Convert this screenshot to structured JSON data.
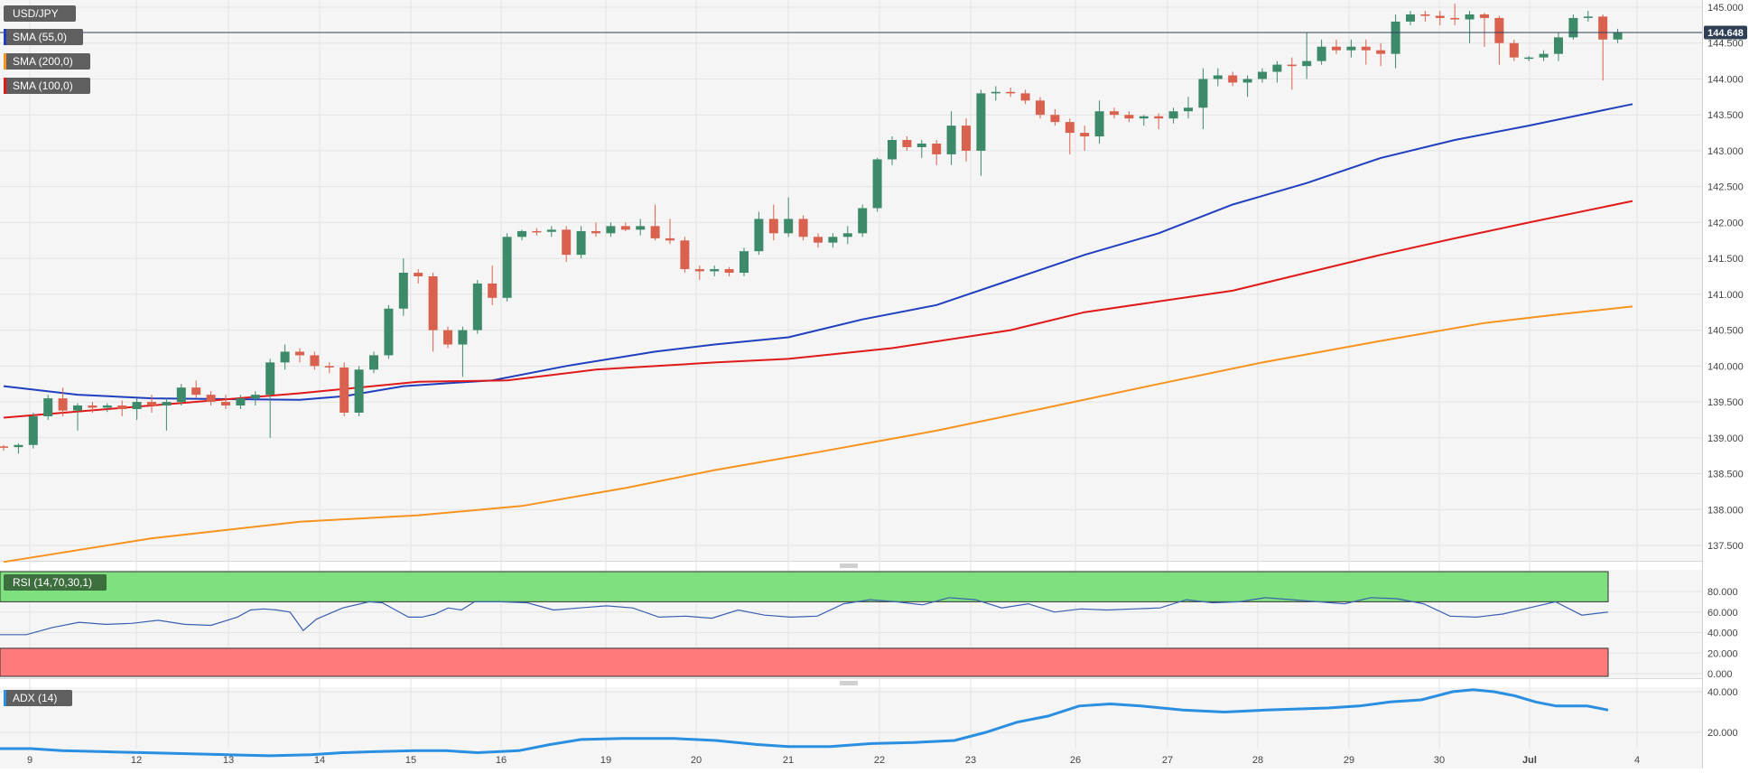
{
  "instrument": "USD/JPY",
  "last_price_label": "144.648",
  "legend": [
    {
      "label": "SMA (55,0)",
      "color": "#1f3fbf"
    },
    {
      "label": "SMA (200,0)",
      "color": "#f7931e"
    },
    {
      "label": "SMA (100,0)",
      "color": "#e01919"
    }
  ],
  "indicators": {
    "rsi_label": "RSI (14,70,30,1)",
    "adx_label": "ADX (14)"
  },
  "colors": {
    "up": "#3d8a6b",
    "down": "#d9614e",
    "sma55": "#1f3fbf",
    "sma100": "#e01919",
    "sma200": "#f7931e",
    "rsi_line": "#3a5fb0",
    "adx_line": "#2a8fe0",
    "overbought_fill": "#7ee07e",
    "oversold_fill": "#ff7a7a"
  },
  "chart_data": {
    "type": "candlestick",
    "x_ticks": [
      "9",
      "12",
      "13",
      "14",
      "15",
      "16",
      "19",
      "20",
      "21",
      "22",
      "23",
      "26",
      "27",
      "28",
      "29",
      "30",
      "Jul",
      "4"
    ],
    "y_ticks": [
      "145.000",
      "144.500",
      "144.000",
      "143.500",
      "143.000",
      "142.500",
      "142.000",
      "141.500",
      "141.000",
      "140.500",
      "140.000",
      "139.500",
      "139.000",
      "138.500",
      "138.000",
      "137.500"
    ],
    "ylim": [
      137.2,
      145.1
    ],
    "candles": [
      [
        138.88,
        138.9,
        138.82,
        138.87
      ],
      [
        138.87,
        138.92,
        138.78,
        138.9
      ],
      [
        138.9,
        139.35,
        138.85,
        139.3
      ],
      [
        139.3,
        139.6,
        139.25,
        139.55
      ],
      [
        139.55,
        139.7,
        139.3,
        139.38
      ],
      [
        139.38,
        139.48,
        139.1,
        139.45
      ],
      [
        139.45,
        139.5,
        139.35,
        139.42
      ],
      [
        139.42,
        139.48,
        139.36,
        139.45
      ],
      [
        139.45,
        139.52,
        139.3,
        139.4
      ],
      [
        139.4,
        139.55,
        139.25,
        139.5
      ],
      [
        139.5,
        139.6,
        139.35,
        139.45
      ],
      [
        139.45,
        139.55,
        139.1,
        139.5
      ],
      [
        139.5,
        139.75,
        139.45,
        139.7
      ],
      [
        139.7,
        139.8,
        139.55,
        139.6
      ],
      [
        139.6,
        139.65,
        139.45,
        139.5
      ],
      [
        139.5,
        139.6,
        139.4,
        139.45
      ],
      [
        139.45,
        139.6,
        139.4,
        139.55
      ],
      [
        139.55,
        139.65,
        139.45,
        139.6
      ],
      [
        139.6,
        140.1,
        139.0,
        140.05
      ],
      [
        140.05,
        140.3,
        139.95,
        140.2
      ],
      [
        140.2,
        140.25,
        140.05,
        140.15
      ],
      [
        140.15,
        140.2,
        139.95,
        140.0
      ],
      [
        140.0,
        140.05,
        139.9,
        139.98
      ],
      [
        139.98,
        140.05,
        139.3,
        139.35
      ],
      [
        139.35,
        140.0,
        139.3,
        139.95
      ],
      [
        139.95,
        140.2,
        139.9,
        140.15
      ],
      [
        140.15,
        140.85,
        140.1,
        140.8
      ],
      [
        140.8,
        141.5,
        140.7,
        141.3
      ],
      [
        141.3,
        141.35,
        141.15,
        141.25
      ],
      [
        141.25,
        141.3,
        140.2,
        140.5
      ],
      [
        140.5,
        140.55,
        140.25,
        140.3
      ],
      [
        140.3,
        140.55,
        139.85,
        140.5
      ],
      [
        140.5,
        141.2,
        140.45,
        141.15
      ],
      [
        141.15,
        141.4,
        140.85,
        140.95
      ],
      [
        140.95,
        141.85,
        140.9,
        141.8
      ],
      [
        141.8,
        141.9,
        141.75,
        141.88
      ],
      [
        141.88,
        141.92,
        141.82,
        141.87
      ],
      [
        141.87,
        141.95,
        141.8,
        141.9
      ],
      [
        141.9,
        141.95,
        141.45,
        141.55
      ],
      [
        141.55,
        141.95,
        141.5,
        141.88
      ],
      [
        141.88,
        142.0,
        141.8,
        141.85
      ],
      [
        141.85,
        142.0,
        141.8,
        141.95
      ],
      [
        141.95,
        142.0,
        141.88,
        141.9
      ],
      [
        141.9,
        142.05,
        141.82,
        141.95
      ],
      [
        141.95,
        142.25,
        141.75,
        141.78
      ],
      [
        141.78,
        142.05,
        141.7,
        141.75
      ],
      [
        141.75,
        141.8,
        141.3,
        141.35
      ],
      [
        141.35,
        141.4,
        141.2,
        141.32
      ],
      [
        141.32,
        141.4,
        141.25,
        141.35
      ],
      [
        141.35,
        141.38,
        141.25,
        141.3
      ],
      [
        141.3,
        141.65,
        141.25,
        141.6
      ],
      [
        141.6,
        142.15,
        141.55,
        142.05
      ],
      [
        142.05,
        142.25,
        141.75,
        141.85
      ],
      [
        141.85,
        142.35,
        141.8,
        142.05
      ],
      [
        142.05,
        142.1,
        141.75,
        141.8
      ],
      [
        141.8,
        141.85,
        141.65,
        141.72
      ],
      [
        141.72,
        141.85,
        141.65,
        141.8
      ],
      [
        141.8,
        141.95,
        141.7,
        141.85
      ],
      [
        141.85,
        142.25,
        141.8,
        142.2
      ],
      [
        142.2,
        142.9,
        142.15,
        142.88
      ],
      [
        142.88,
        143.2,
        142.8,
        143.15
      ],
      [
        143.15,
        143.2,
        143.0,
        143.05
      ],
      [
        143.05,
        143.15,
        142.9,
        143.1
      ],
      [
        143.1,
        143.15,
        142.8,
        142.95
      ],
      [
        142.95,
        143.55,
        142.8,
        143.35
      ],
      [
        143.35,
        143.45,
        142.85,
        143.0
      ],
      [
        143.0,
        143.85,
        142.65,
        143.8
      ],
      [
        143.8,
        143.9,
        143.7,
        143.82
      ],
      [
        143.82,
        143.88,
        143.75,
        143.8
      ],
      [
        143.8,
        143.85,
        143.65,
        143.7
      ],
      [
        143.7,
        143.75,
        143.45,
        143.5
      ],
      [
        143.5,
        143.58,
        143.35,
        143.4
      ],
      [
        143.4,
        143.45,
        142.95,
        143.25
      ],
      [
        143.25,
        143.35,
        143.0,
        143.2
      ],
      [
        143.2,
        143.7,
        143.1,
        143.55
      ],
      [
        143.55,
        143.6,
        143.45,
        143.5
      ],
      [
        143.5,
        143.55,
        143.4,
        143.45
      ],
      [
        143.45,
        143.5,
        143.35,
        143.48
      ],
      [
        143.48,
        143.52,
        143.3,
        143.45
      ],
      [
        143.45,
        143.6,
        143.38,
        143.55
      ],
      [
        143.55,
        143.75,
        143.45,
        143.6
      ],
      [
        143.6,
        144.15,
        143.3,
        144.0
      ],
      [
        144.0,
        144.15,
        143.9,
        144.05
      ],
      [
        144.05,
        144.1,
        143.9,
        143.95
      ],
      [
        143.95,
        144.05,
        143.75,
        144.0
      ],
      [
        144.0,
        144.15,
        143.95,
        144.1
      ],
      [
        144.1,
        144.25,
        143.95,
        144.2
      ],
      [
        144.2,
        144.3,
        143.85,
        144.18
      ],
      [
        144.18,
        144.65,
        144.0,
        144.25
      ],
      [
        144.25,
        144.55,
        144.2,
        144.45
      ],
      [
        144.45,
        144.55,
        144.35,
        144.4
      ],
      [
        144.4,
        144.55,
        144.3,
        144.45
      ],
      [
        144.45,
        144.55,
        144.2,
        144.4
      ],
      [
        144.4,
        144.5,
        144.18,
        144.35
      ],
      [
        144.35,
        144.9,
        144.15,
        144.8
      ],
      [
        144.8,
        144.95,
        144.75,
        144.9
      ],
      [
        144.9,
        144.95,
        144.8,
        144.88
      ],
      [
        144.88,
        144.95,
        144.75,
        144.85
      ],
      [
        144.85,
        145.05,
        144.75,
        144.83
      ],
      [
        144.83,
        144.95,
        144.5,
        144.9
      ],
      [
        144.9,
        144.92,
        144.45,
        144.85
      ],
      [
        144.85,
        144.88,
        144.2,
        144.5
      ],
      [
        144.5,
        144.55,
        144.25,
        144.3
      ],
      [
        144.3,
        144.32,
        144.25,
        144.3
      ],
      [
        144.3,
        144.4,
        144.25,
        144.35
      ],
      [
        144.35,
        144.65,
        144.25,
        144.58
      ],
      [
        144.58,
        144.9,
        144.55,
        144.85
      ],
      [
        144.85,
        144.95,
        144.8,
        144.87
      ],
      [
        144.87,
        144.9,
        143.98,
        144.55
      ],
      [
        144.55,
        144.7,
        144.5,
        144.65
      ]
    ],
    "series": [
      {
        "name": "SMA (55,0)",
        "values": [
          [
            0,
            139.72
          ],
          [
            5,
            139.6
          ],
          [
            10,
            139.55
          ],
          [
            20,
            139.53
          ],
          [
            23,
            139.58
          ],
          [
            27,
            139.72
          ],
          [
            33,
            139.8
          ],
          [
            38,
            140.0
          ],
          [
            44,
            140.2
          ],
          [
            48,
            140.3
          ],
          [
            53,
            140.4
          ],
          [
            58,
            140.65
          ],
          [
            63,
            140.85
          ],
          [
            68,
            141.2
          ],
          [
            73,
            141.55
          ],
          [
            78,
            141.85
          ],
          [
            83,
            142.25
          ],
          [
            88,
            142.55
          ],
          [
            93,
            142.9
          ],
          [
            98,
            143.15
          ],
          [
            103,
            143.35
          ],
          [
            110,
            143.65
          ]
        ]
      },
      {
        "name": "SMA (100,0)",
        "values": [
          [
            0,
            139.28
          ],
          [
            10,
            139.45
          ],
          [
            20,
            139.62
          ],
          [
            28,
            139.78
          ],
          [
            34,
            139.8
          ],
          [
            40,
            139.95
          ],
          [
            48,
            140.05
          ],
          [
            53,
            140.1
          ],
          [
            60,
            140.25
          ],
          [
            68,
            140.5
          ],
          [
            73,
            140.75
          ],
          [
            78,
            140.9
          ],
          [
            83,
            141.05
          ],
          [
            88,
            141.3
          ],
          [
            93,
            141.55
          ],
          [
            98,
            141.78
          ],
          [
            103,
            142.0
          ],
          [
            110,
            142.3
          ]
        ]
      },
      {
        "name": "SMA (200,0)",
        "values": [
          [
            0,
            137.27
          ],
          [
            10,
            137.6
          ],
          [
            20,
            137.83
          ],
          [
            28,
            137.92
          ],
          [
            35,
            138.05
          ],
          [
            42,
            138.3
          ],
          [
            48,
            138.55
          ],
          [
            55,
            138.8
          ],
          [
            63,
            139.1
          ],
          [
            70,
            139.4
          ],
          [
            78,
            139.75
          ],
          [
            85,
            140.05
          ],
          [
            93,
            140.35
          ],
          [
            100,
            140.6
          ],
          [
            105,
            140.72
          ],
          [
            110,
            140.83
          ]
        ]
      }
    ],
    "rsi": {
      "y_ticks": [
        "80.000",
        "60.000",
        "40.000",
        "20.000",
        "0.000"
      ],
      "ylim": [
        0,
        100
      ],
      "overbought": 70,
      "oversold": 30,
      "values": [
        [
          0,
          38
        ],
        [
          2,
          38
        ],
        [
          4,
          45
        ],
        [
          6,
          50
        ],
        [
          8,
          48
        ],
        [
          10,
          49
        ],
        [
          12,
          52
        ],
        [
          14,
          48
        ],
        [
          16,
          47
        ],
        [
          18,
          55
        ],
        [
          19,
          62
        ],
        [
          20,
          63
        ],
        [
          21,
          62
        ],
        [
          22,
          60
        ],
        [
          23,
          42
        ],
        [
          24,
          53
        ],
        [
          26,
          64
        ],
        [
          28,
          70
        ],
        [
          29,
          69
        ],
        [
          30,
          62
        ],
        [
          31,
          55
        ],
        [
          32,
          55
        ],
        [
          33,
          58
        ],
        [
          34,
          64
        ],
        [
          35,
          62
        ],
        [
          36,
          70
        ],
        [
          38,
          70
        ],
        [
          40,
          69
        ],
        [
          42,
          62
        ],
        [
          44,
          64
        ],
        [
          46,
          66
        ],
        [
          48,
          64
        ],
        [
          50,
          55
        ],
        [
          52,
          56
        ],
        [
          54,
          54
        ],
        [
          56,
          62
        ],
        [
          58,
          57
        ],
        [
          60,
          55
        ],
        [
          62,
          56
        ],
        [
          64,
          68
        ],
        [
          66,
          72
        ],
        [
          68,
          70
        ],
        [
          70,
          67
        ],
        [
          72,
          74
        ],
        [
          74,
          72
        ],
        [
          76,
          64
        ],
        [
          78,
          68
        ],
        [
          80,
          60
        ],
        [
          82,
          63
        ],
        [
          84,
          62
        ],
        [
          86,
          63
        ],
        [
          88,
          64
        ],
        [
          90,
          72
        ],
        [
          92,
          69
        ],
        [
          94,
          70
        ],
        [
          96,
          74
        ],
        [
          98,
          72
        ],
        [
          100,
          70
        ],
        [
          102,
          68
        ],
        [
          104,
          74
        ],
        [
          106,
          73
        ],
        [
          108,
          68
        ],
        [
          110,
          56
        ],
        [
          112,
          55
        ],
        [
          114,
          58
        ],
        [
          116,
          64
        ],
        [
          118,
          70
        ],
        [
          120,
          57
        ],
        [
          122,
          60
        ]
      ]
    },
    "adx": {
      "y_ticks": [
        "40.000",
        "20.000"
      ],
      "ylim": [
        5,
        45
      ],
      "values": [
        [
          0,
          12
        ],
        [
          3,
          12
        ],
        [
          6,
          11
        ],
        [
          10,
          10.5
        ],
        [
          14,
          10
        ],
        [
          18,
          9.5
        ],
        [
          22,
          9
        ],
        [
          26,
          8.5
        ],
        [
          30,
          9
        ],
        [
          33,
          10
        ],
        [
          36,
          10.5
        ],
        [
          40,
          11
        ],
        [
          43,
          11
        ],
        [
          46,
          10
        ],
        [
          50,
          11
        ],
        [
          53,
          14
        ],
        [
          56,
          16.5
        ],
        [
          60,
          17
        ],
        [
          65,
          17
        ],
        [
          69,
          16
        ],
        [
          73,
          14
        ],
        [
          76,
          13
        ],
        [
          80,
          13
        ],
        [
          84,
          14.5
        ],
        [
          88,
          15
        ],
        [
          92,
          16
        ],
        [
          95,
          20
        ],
        [
          98,
          25
        ],
        [
          101,
          28
        ],
        [
          104,
          33
        ],
        [
          107,
          34
        ],
        [
          110,
          33
        ],
        [
          114,
          31
        ],
        [
          118,
          30
        ],
        [
          122,
          31
        ],
        [
          125,
          31.5
        ],
        [
          128,
          32
        ],
        [
          131,
          33
        ],
        [
          134,
          35
        ],
        [
          137,
          36
        ],
        [
          140,
          40
        ],
        [
          142,
          41
        ],
        [
          144,
          40
        ],
        [
          146,
          38
        ],
        [
          148,
          35
        ],
        [
          150,
          33
        ],
        [
          153,
          33
        ],
        [
          155,
          31
        ]
      ]
    }
  }
}
